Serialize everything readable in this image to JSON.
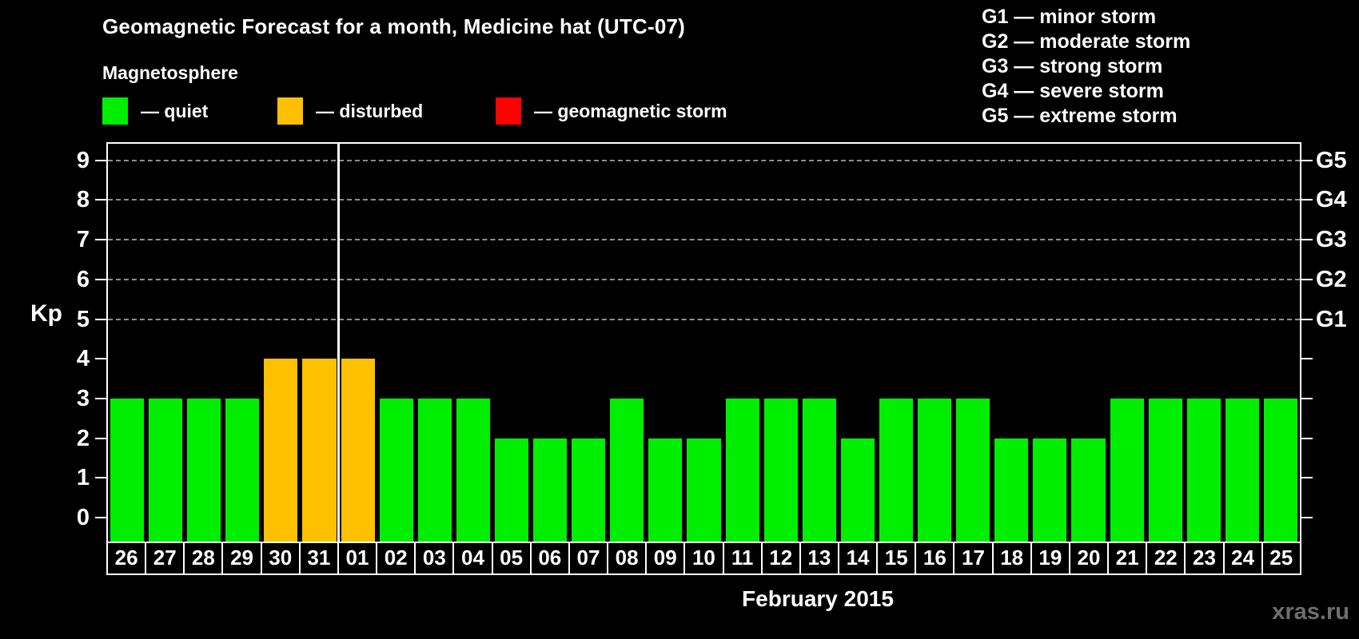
{
  "header": {
    "title": "Geomagnetic Forecast for a month, Medicine hat (UTC-07)",
    "subtitle": "Magnetosphere"
  },
  "legend": {
    "items": [
      {
        "key": "quiet",
        "label": "— quiet",
        "color": "#00EE00"
      },
      {
        "key": "disturbed",
        "label": "— disturbed",
        "color": "#FFC000"
      },
      {
        "key": "storm",
        "label": "— geomagnetic storm",
        "color": "#FF0000"
      }
    ]
  },
  "g_scale_legend": {
    "items": [
      "G1 — minor storm",
      "G2 — moderate storm",
      "G3 — strong storm",
      "G4 — severe storm",
      "G5 — extreme storm"
    ]
  },
  "watermark": "xras.ru",
  "chart_data": {
    "type": "bar",
    "title": "Geomagnetic Forecast for a month, Medicine hat (UTC-07)",
    "xlabel": "February 2015",
    "ylabel": "Kp",
    "ylim": [
      0,
      9.6
    ],
    "yticks": [
      0,
      1,
      2,
      3,
      4,
      5,
      6,
      7,
      8,
      9
    ],
    "grid": true,
    "gridlines_at_kp": [
      5,
      6,
      7,
      8,
      9
    ],
    "legend_position": "top-left",
    "right_axis": {
      "labels": [
        {
          "text": "G1",
          "kp": 5
        },
        {
          "text": "G2",
          "kp": 6
        },
        {
          "text": "G3",
          "kp": 7
        },
        {
          "text": "G4",
          "kp": 8
        },
        {
          "text": "G5",
          "kp": 9
        }
      ]
    },
    "month_boundary_after_index": 5,
    "categories": [
      "26",
      "27",
      "28",
      "29",
      "30",
      "31",
      "01",
      "02",
      "03",
      "04",
      "05",
      "06",
      "07",
      "08",
      "09",
      "10",
      "11",
      "12",
      "13",
      "14",
      "15",
      "16",
      "17",
      "18",
      "19",
      "20",
      "21",
      "22",
      "23",
      "24",
      "25"
    ],
    "values": [
      3,
      3,
      3,
      3,
      4,
      4,
      4,
      3,
      3,
      3,
      2,
      2,
      2,
      3,
      2,
      2,
      3,
      3,
      3,
      2,
      3,
      3,
      3,
      2,
      2,
      2,
      3,
      3,
      3,
      3,
      3
    ],
    "states": [
      "quiet",
      "quiet",
      "quiet",
      "quiet",
      "disturbed",
      "disturbed",
      "disturbed",
      "quiet",
      "quiet",
      "quiet",
      "quiet",
      "quiet",
      "quiet",
      "quiet",
      "quiet",
      "quiet",
      "quiet",
      "quiet",
      "quiet",
      "quiet",
      "quiet",
      "quiet",
      "quiet",
      "quiet",
      "quiet",
      "quiet",
      "quiet",
      "quiet",
      "quiet",
      "quiet",
      "quiet"
    ],
    "state_colors": {
      "quiet": "#00EE00",
      "disturbed": "#FFC000",
      "storm": "#FF0000"
    }
  }
}
